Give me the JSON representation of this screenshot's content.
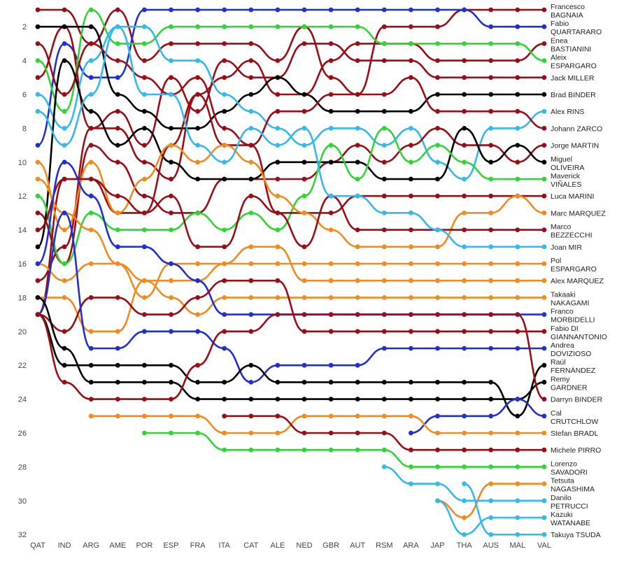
{
  "chart_data": {
    "type": "line",
    "title": "",
    "xlabel": "",
    "ylabel": "",
    "y_axis_inverted": true,
    "ylim": [
      1,
      32
    ],
    "y_ticks": [
      2,
      4,
      6,
      8,
      10,
      12,
      14,
      16,
      18,
      20,
      22,
      24,
      26,
      28,
      30,
      32
    ],
    "x": [
      "QAT",
      "IND",
      "ARG",
      "AME",
      "POR",
      "ESP",
      "FRA",
      "ITA",
      "CAT",
      "ALE",
      "NED",
      "GBR",
      "AUT",
      "RSM",
      "ARA",
      "JAP",
      "THA",
      "AUS",
      "MAL",
      "VAL"
    ],
    "series": [
      {
        "name": "Francesco BAGNAIA",
        "label_lines": [
          "Francesco",
          "BAGNAIA"
        ],
        "color": "#9b0d14",
        "values": [
          1,
          1,
          3,
          1,
          4,
          3,
          3,
          3,
          3,
          4,
          2,
          5,
          6,
          2,
          2,
          2,
          1,
          1,
          1,
          1
        ]
      },
      {
        "name": "Fabio QUARTARARO",
        "label_lines": [
          "Fabio",
          "QUARTARARO"
        ],
        "color": "#1f2fd6",
        "values": [
          9,
          3,
          5,
          5,
          1,
          1,
          1,
          1,
          1,
          1,
          1,
          1,
          1,
          1,
          1,
          1,
          1,
          2,
          2,
          2
        ]
      },
      {
        "name": "Enea BASTIANINI",
        "label_lines": [
          "Enea",
          "BASTIANINI"
        ],
        "color": "#9b0d14",
        "values": [
          5,
          2,
          8,
          8,
          10,
          11,
          6,
          5,
          4,
          6,
          6,
          4,
          3,
          3,
          3,
          4,
          4,
          4,
          4,
          3
        ]
      },
      {
        "name": "Aleix ESPARGARO",
        "label_lines": [
          "Aleix",
          "ESPARGARO"
        ],
        "color": "#2fd633",
        "values": [
          4,
          7,
          1,
          3,
          3,
          2,
          2,
          2,
          2,
          2,
          2,
          2,
          2,
          3,
          3,
          3,
          3,
          3,
          3,
          4
        ]
      },
      {
        "name": "Jack MILLER",
        "label_lines": [
          "Jack MILLER"
        ],
        "color": "#9b0d14",
        "values": [
          17,
          15,
          8,
          7,
          9,
          5,
          7,
          4,
          5,
          5,
          3,
          3,
          4,
          4,
          4,
          5,
          5,
          5,
          5,
          5
        ]
      },
      {
        "name": "Brad BINDER",
        "label_lines": [
          "Brad BINDER"
        ],
        "color": "#000000",
        "values": [
          2,
          2,
          2,
          6,
          7,
          8,
          8,
          7,
          6,
          5,
          6,
          7,
          7,
          7,
          7,
          6,
          6,
          6,
          6,
          6
        ]
      },
      {
        "name": "Alex RINS",
        "label_lines": [
          "Alex RINS"
        ],
        "color": "#33b8f0",
        "values": [
          6,
          8,
          4,
          2,
          2,
          4,
          4,
          6,
          7,
          8,
          9,
          8,
          8,
          9,
          8,
          10,
          11,
          8,
          8,
          7
        ]
      },
      {
        "name": "Johann ZARCO",
        "label_lines": [
          "Johann ZARCO"
        ],
        "color": "#9b0d14",
        "values": [
          3,
          6,
          3,
          4,
          5,
          6,
          5,
          8,
          9,
          7,
          7,
          6,
          6,
          6,
          5,
          7,
          7,
          7,
          7,
          8
        ]
      },
      {
        "name": "Jorge MARTIN",
        "label_lines": [
          "Jorge MARTIN"
        ],
        "color": "#9b0d14",
        "values": [
          13,
          16,
          9,
          10,
          12,
          13,
          13,
          11,
          11,
          11,
          11,
          10,
          9,
          10,
          9,
          8,
          9,
          9,
          10,
          9
        ]
      },
      {
        "name": "Miguel OLIVEIRA",
        "label_lines": [
          "Miguel",
          "OLIVEIRA"
        ],
        "color": "#000000",
        "values": [
          15,
          4,
          7,
          9,
          8,
          10,
          11,
          11,
          11,
          10,
          10,
          10,
          10,
          11,
          11,
          11,
          8,
          10,
          9,
          10
        ]
      },
      {
        "name": "Maverick VIÑALES",
        "label_lines": [
          "Maverick",
          "VIÑALES"
        ],
        "color": "#2fd633",
        "values": [
          12,
          16,
          13,
          14,
          14,
          14,
          13,
          14,
          13,
          14,
          12,
          9,
          11,
          8,
          10,
          9,
          10,
          11,
          11,
          11
        ]
      },
      {
        "name": "Luca MARINI",
        "label_lines": [
          "Luca MARINI"
        ],
        "color": "#9b0d14",
        "values": [
          19,
          11,
          11,
          13,
          13,
          9,
          6,
          9,
          9,
          13,
          13,
          13,
          12,
          12,
          12,
          12,
          12,
          12,
          12,
          12
        ]
      },
      {
        "name": "Marc MARQUEZ",
        "label_lines": [
          "Marc MARQUEZ"
        ],
        "color": "#f28a1e",
        "values": [
          10,
          14,
          10,
          13,
          11,
          9,
          10,
          9,
          10,
          12,
          13,
          14,
          15,
          15,
          15,
          15,
          13,
          13,
          12,
          13
        ]
      },
      {
        "name": "Marco BEZZECCHI",
        "label_lines": [
          "Marco",
          "BEZZECCHI"
        ],
        "color": "#9b0d14",
        "values": [
          14,
          11,
          11,
          12,
          13,
          12,
          15,
          15,
          12,
          13,
          15,
          12,
          14,
          14,
          14,
          14,
          14,
          14,
          14,
          14
        ]
      },
      {
        "name": "Joan MIR",
        "label_lines": [
          "Joan MIR"
        ],
        "color": "#33b8f0",
        "values": [
          7,
          9,
          6,
          2,
          6,
          6,
          9,
          10,
          8,
          9,
          8,
          12,
          12,
          13,
          13,
          14,
          15,
          15,
          15,
          15
        ]
      },
      {
        "name": "Pol ESPARGARO",
        "label_lines": [
          "Pol",
          "ESPARGARO"
        ],
        "color": "#f28a1e",
        "values": [
          11,
          13,
          14,
          16,
          18,
          16,
          16,
          16,
          16,
          16,
          16,
          16,
          16,
          16,
          16,
          16,
          16,
          16,
          16,
          16
        ]
      },
      {
        "name": "Alex MARQUEZ",
        "label_lines": [
          "Alex MARQUEZ"
        ],
        "color": "#f28a1e",
        "values": [
          16,
          17,
          16,
          16,
          17,
          17,
          17,
          16,
          15,
          15,
          17,
          17,
          17,
          17,
          17,
          17,
          17,
          17,
          17,
          17
        ]
      },
      {
        "name": "Takaaki NAKAGAMI",
        "label_lines": [
          "Takaaki",
          "NAKAGAMI"
        ],
        "color": "#f28a1e",
        "values": [
          18,
          18,
          20,
          20,
          17,
          18,
          19,
          18,
          18,
          18,
          18,
          18,
          18,
          18,
          18,
          18,
          18,
          18,
          18,
          18
        ]
      },
      {
        "name": "Franco MORBIDELLI",
        "label_lines": [
          "Franco",
          "MORBIDELLI"
        ],
        "color": "#1f2fd6",
        "values": [
          16,
          10,
          12,
          15,
          15,
          16,
          17,
          19,
          19,
          19,
          19,
          19,
          19,
          19,
          19,
          19,
          19,
          19,
          19,
          19
        ]
      },
      {
        "name": "Fabio DI GIANNANTONIO",
        "label_lines": [
          "Fabio DI",
          "GIANNANTONIO"
        ],
        "color": "#9b0d14",
        "values": [
          19,
          20,
          18,
          18,
          19,
          19,
          18,
          17,
          17,
          17,
          20,
          20,
          20,
          20,
          20,
          20,
          20,
          20,
          20,
          20
        ]
      },
      {
        "name": "Andrea DOVIZIOSO",
        "label_lines": [
          "Andrea",
          "DOVIZIOSO"
        ],
        "color": "#1f2fd6",
        "values": [
          19,
          13,
          21,
          21,
          20,
          20,
          20,
          21,
          23,
          22,
          22,
          22,
          22,
          21,
          21,
          21,
          21,
          21,
          21,
          21
        ]
      },
      {
        "name": "Raúl FERNÁNDEZ",
        "label_lines": [
          "Raúl",
          "FERNÁNDEZ"
        ],
        "color": "#000000",
        "values": [
          19,
          22,
          22,
          22,
          22,
          22,
          23,
          23,
          22,
          23,
          23,
          23,
          23,
          23,
          23,
          23,
          23,
          23,
          25,
          22
        ]
      },
      {
        "name": "Remy GARDNER",
        "label_lines": [
          "Remy",
          "GARDNER"
        ],
        "color": "#000000",
        "values": [
          18,
          21,
          23,
          23,
          23,
          23,
          24,
          24,
          24,
          24,
          24,
          24,
          24,
          24,
          24,
          24,
          24,
          24,
          24,
          23
        ]
      },
      {
        "name": "Darryn BINDER",
        "label_lines": [
          "Darryn BINDER"
        ],
        "color": "#9b0d14",
        "values": [
          19,
          23,
          24,
          24,
          24,
          24,
          22,
          20,
          20,
          19,
          19,
          19,
          19,
          19,
          19,
          19,
          19,
          19,
          19,
          24
        ]
      },
      {
        "name": "Cal CRUTCHLOW",
        "label_lines": [
          "Cal",
          "CRUTCHLOW"
        ],
        "color": "#1f2fd6",
        "values": [
          null,
          null,
          null,
          null,
          null,
          null,
          null,
          null,
          null,
          null,
          null,
          null,
          null,
          null,
          26,
          25,
          25,
          25,
          24,
          25
        ]
      },
      {
        "name": "Stefan BRADL",
        "label_lines": [
          "Stefan BRADL"
        ],
        "color": "#f28a1e",
        "values": [
          null,
          null,
          25,
          25,
          25,
          25,
          25,
          26,
          26,
          26,
          25,
          25,
          25,
          25,
          25,
          26,
          26,
          26,
          26,
          26
        ]
      },
      {
        "name": "Michele PIRRO",
        "label_lines": [
          "Michele PIRRO"
        ],
        "color": "#9b0d14",
        "values": [
          null,
          null,
          null,
          null,
          null,
          null,
          null,
          25,
          25,
          25,
          26,
          26,
          26,
          26,
          27,
          27,
          27,
          27,
          27,
          27
        ]
      },
      {
        "name": "Lorenzo SAVADORI",
        "label_lines": [
          "Lorenzo",
          "SAVADORI"
        ],
        "color": "#2fd633",
        "values": [
          null,
          null,
          null,
          null,
          26,
          26,
          26,
          27,
          27,
          27,
          27,
          27,
          27,
          27,
          28,
          28,
          28,
          28,
          28,
          28
        ]
      },
      {
        "name": "Tetsuta NAGASHIMA",
        "label_lines": [
          "Tetsuta",
          "NAGASHIMA"
        ],
        "color": "#f28a1e",
        "values": [
          null,
          null,
          null,
          null,
          null,
          null,
          null,
          null,
          null,
          null,
          null,
          null,
          null,
          null,
          null,
          30,
          31,
          29,
          29,
          29
        ]
      },
      {
        "name": "Danilo PETRUCCI",
        "label_lines": [
          "Danilo",
          "PETRUCCI"
        ],
        "color": "#33b8f0",
        "values": [
          null,
          null,
          null,
          null,
          null,
          null,
          null,
          null,
          null,
          null,
          null,
          null,
          null,
          28,
          29,
          29,
          30,
          30,
          30,
          30
        ]
      },
      {
        "name": "Kazuki WATANABE",
        "label_lines": [
          "Kazuki",
          "WATANABE"
        ],
        "color": "#33b8f0",
        "values": [
          null,
          null,
          null,
          null,
          null,
          null,
          null,
          null,
          null,
          null,
          null,
          null,
          null,
          null,
          null,
          30,
          32,
          31,
          31,
          31
        ]
      },
      {
        "name": "Takuya TSUDA",
        "label_lines": [
          "Takuya TSUDA"
        ],
        "color": "#33b8f0",
        "values": [
          null,
          null,
          null,
          null,
          null,
          null,
          null,
          null,
          null,
          null,
          null,
          null,
          null,
          null,
          null,
          null,
          29,
          32,
          32,
          32
        ]
      }
    ]
  }
}
